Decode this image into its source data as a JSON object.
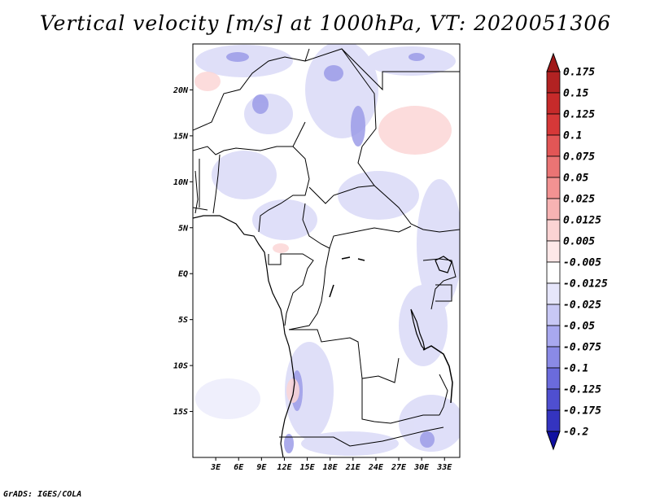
{
  "title": "Vertical velocity [m/s] at 1000hPa, VT: 2020051306",
  "footer": "GrADS: IGES/COLA",
  "map": {
    "lon_range": [
      0,
      35
    ],
    "lat_range": [
      -20,
      25
    ],
    "lat_ticks": [
      {
        "value": 20,
        "label": "20N"
      },
      {
        "value": 15,
        "label": "15N"
      },
      {
        "value": 10,
        "label": "10N"
      },
      {
        "value": 5,
        "label": "5N"
      },
      {
        "value": 0,
        "label": "EQ"
      },
      {
        "value": -5,
        "label": "5S"
      },
      {
        "value": -10,
        "label": "10S"
      },
      {
        "value": -15,
        "label": "15S"
      }
    ],
    "lon_ticks": [
      {
        "value": 3,
        "label": "3E"
      },
      {
        "value": 6,
        "label": "6E"
      },
      {
        "value": 9,
        "label": "9E"
      },
      {
        "value": 12,
        "label": "12E"
      },
      {
        "value": 15,
        "label": "15E"
      },
      {
        "value": 18,
        "label": "18E"
      },
      {
        "value": 21,
        "label": "21E"
      },
      {
        "value": 24,
        "label": "24E"
      },
      {
        "value": 27,
        "label": "27E"
      },
      {
        "value": 30,
        "label": "30E"
      },
      {
        "value": 33,
        "label": "33E"
      }
    ]
  },
  "colorbar": {
    "levels": [
      {
        "label": "0.175",
        "color": "#b22222"
      },
      {
        "label": "0.15",
        "color": "#c62a2a"
      },
      {
        "label": "0.125",
        "color": "#d63838"
      },
      {
        "label": "0.1",
        "color": "#e25656"
      },
      {
        "label": "0.075",
        "color": "#ea7474"
      },
      {
        "label": "0.05",
        "color": "#f29292"
      },
      {
        "label": "0.025",
        "color": "#f7b3b3"
      },
      {
        "label": "0.0125",
        "color": "#fbd3d3"
      },
      {
        "label": "0.005",
        "color": "#fde8e8"
      },
      {
        "label": "-0.005",
        "color": "#ffffff"
      },
      {
        "label": "-0.0125",
        "color": "#e6e6fb"
      },
      {
        "label": "-0.025",
        "color": "#c8c8f5"
      },
      {
        "label": "-0.05",
        "color": "#a8a8ef"
      },
      {
        "label": "-0.075",
        "color": "#8a8ae6"
      },
      {
        "label": "-0.1",
        "color": "#6b6bdc"
      },
      {
        "label": "-0.125",
        "color": "#4f4fd0"
      },
      {
        "label": "-0.175",
        "color": "#3434c0"
      },
      {
        "label": "-0.2",
        "color": "#1e1ea8"
      }
    ],
    "top_color": "#a01818",
    "bottom_color": "#1010a0"
  }
}
